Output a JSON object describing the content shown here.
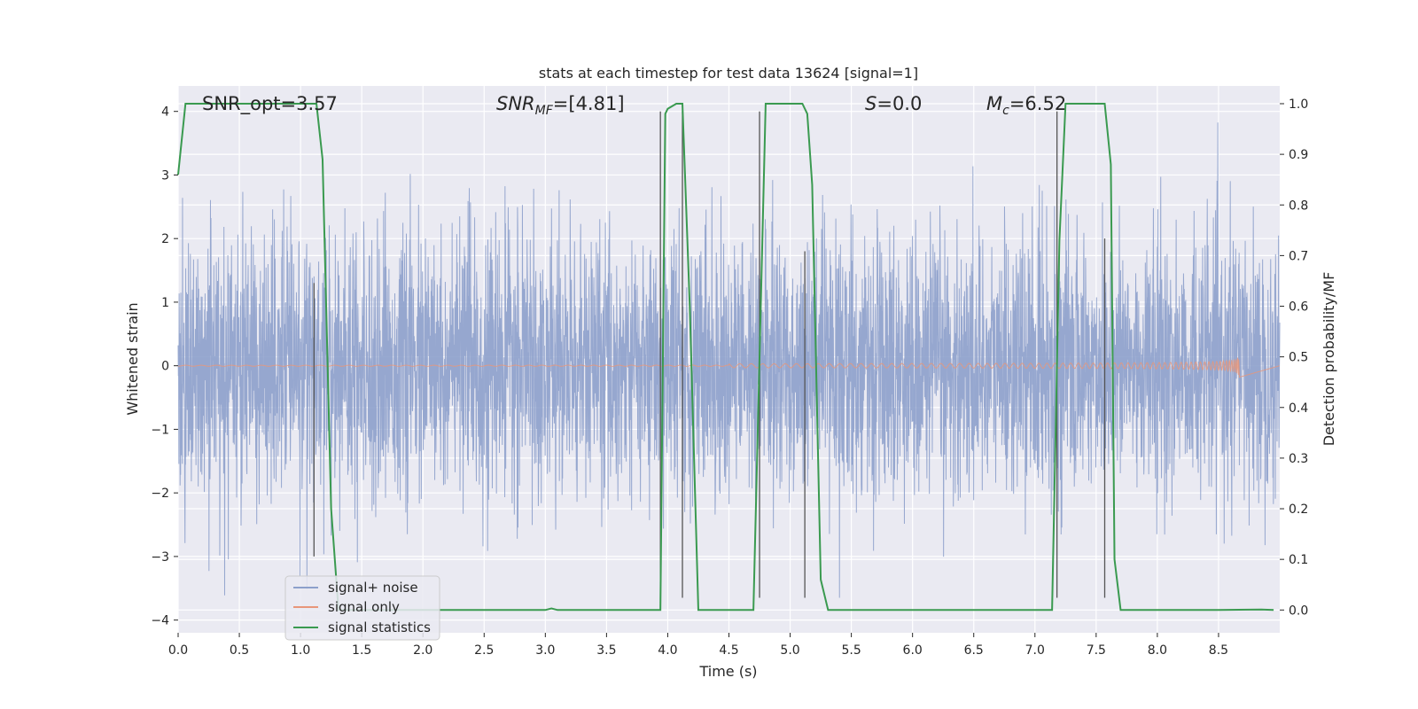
{
  "chart_data": {
    "type": "line",
    "title": "stats at each timestep for test data 13624 [signal=1]",
    "xlabel": "Time (s)",
    "ylabel": "Whitened strain",
    "y2label": "Detection probability/MF",
    "xlim": [
      0.0,
      9.0
    ],
    "ylim": [
      -4.2,
      4.4
    ],
    "y2lim": [
      -0.045,
      1.035
    ],
    "x_ticks": [
      0.0,
      0.5,
      1.0,
      1.5,
      2.0,
      2.5,
      3.0,
      3.5,
      4.0,
      4.5,
      5.0,
      5.5,
      6.0,
      6.5,
      7.0,
      7.5,
      8.0,
      8.5
    ],
    "x_tick_labels": [
      "0.0",
      "0.5",
      "1.0",
      "1.5",
      "2.0",
      "2.5",
      "3.0",
      "3.5",
      "4.0",
      "4.5",
      "5.0",
      "5.5",
      "6.0",
      "6.5",
      "7.0",
      "7.5",
      "8.0",
      "8.5"
    ],
    "y_ticks": [
      -4,
      -3,
      -2,
      -1,
      0,
      1,
      2,
      3,
      4
    ],
    "y_tick_labels": [
      "−4",
      "−3",
      "−2",
      "−1",
      "0",
      "1",
      "2",
      "3",
      "4"
    ],
    "y2_ticks": [
      0.0,
      0.1,
      0.2,
      0.3,
      0.4,
      0.5,
      0.6,
      0.7,
      0.8,
      0.9,
      1.0
    ],
    "y2_tick_labels": [
      "0.0",
      "0.1",
      "0.2",
      "0.3",
      "0.4",
      "0.5",
      "0.6",
      "0.7",
      "0.8",
      "0.9",
      "1.0"
    ],
    "grid": true,
    "legend": {
      "position": "lower-left",
      "entries": [
        {
          "label": "signal+ noise",
          "color": "#8da0cb"
        },
        {
          "label": "signal only",
          "color": "#e8967a"
        },
        {
          "label": "signal statistics",
          "color": "#3a9a50"
        }
      ]
    },
    "annotations": {
      "snr_opt": "SNR_opt=3.57",
      "snr_mf_base": "SNR",
      "snr_mf_sub": "MF",
      "snr_mf_value": "=[4.81]",
      "s_var": "S",
      "s_value": "=0.0",
      "mc_base": "M",
      "mc_sub": "c",
      "mc_value": "=6.52"
    },
    "series": [
      {
        "name": "signal+ noise",
        "color": "#8da0cb",
        "description": "whitened strain noise, amplitude roughly -3.6 to 3.9, dense over 0-9 s",
        "amplitude_std": 1.0
      },
      {
        "name": "signal only",
        "color": "#e8967a",
        "description": "chirp signal growing toward merger near t=8.67 s",
        "chirp_start": 4.5,
        "merger_time": 8.67,
        "peak_amplitude": 0.55
      },
      {
        "name": "signal statistics",
        "color": "#3a9a50",
        "axis": "right",
        "x": [
          0.0,
          0.06,
          0.1,
          0.2,
          1.1,
          1.13,
          1.18,
          1.25,
          1.31,
          1.35,
          1.4,
          2.0,
          2.5,
          3.0,
          3.05,
          3.1,
          3.2,
          3.5,
          3.94,
          3.98,
          4.0,
          4.07,
          4.12,
          4.18,
          4.25,
          4.5,
          4.7,
          4.74,
          4.8,
          5.0,
          5.1,
          5.14,
          5.18,
          5.25,
          5.31,
          5.4,
          6.0,
          7.0,
          7.14,
          7.2,
          7.25,
          7.3,
          7.57,
          7.62,
          7.65,
          7.7,
          8.0,
          8.5,
          8.85,
          8.95
        ],
        "y": [
          0.86,
          1.0,
          1.0,
          1.0,
          1.0,
          1.0,
          0.89,
          0.2,
          0.0,
          0.0,
          0.0,
          0.0,
          0.0,
          0.0,
          0.003,
          0.0,
          0.0,
          0.0,
          0.0,
          0.98,
          0.99,
          1.0,
          1.0,
          0.6,
          0.0,
          0.0,
          0.0,
          0.4,
          1.0,
          1.0,
          1.0,
          0.98,
          0.84,
          0.06,
          0.0,
          0.0,
          0.0,
          0.0,
          0.0,
          0.73,
          1.0,
          1.0,
          1.0,
          0.88,
          0.1,
          0.0,
          0.0,
          0.0,
          0.001,
          0.0
        ]
      }
    ],
    "vertical_markers": [
      {
        "x": 1.11,
        "y_top": 1.3,
        "y_bottom": -3.0
      },
      {
        "x": 3.94,
        "y_top": 4.0,
        "y_bottom": -3.65
      },
      {
        "x": 4.12,
        "y_top": 4.0,
        "y_bottom": -3.65
      },
      {
        "x": 4.75,
        "y_top": 4.0,
        "y_bottom": -3.65
      },
      {
        "x": 5.12,
        "y_top": 1.8,
        "y_bottom": -3.65
      },
      {
        "x": 7.18,
        "y_top": 4.0,
        "y_bottom": -3.65
      },
      {
        "x": 7.57,
        "y_top": 2.0,
        "y_bottom": -3.65
      }
    ]
  }
}
